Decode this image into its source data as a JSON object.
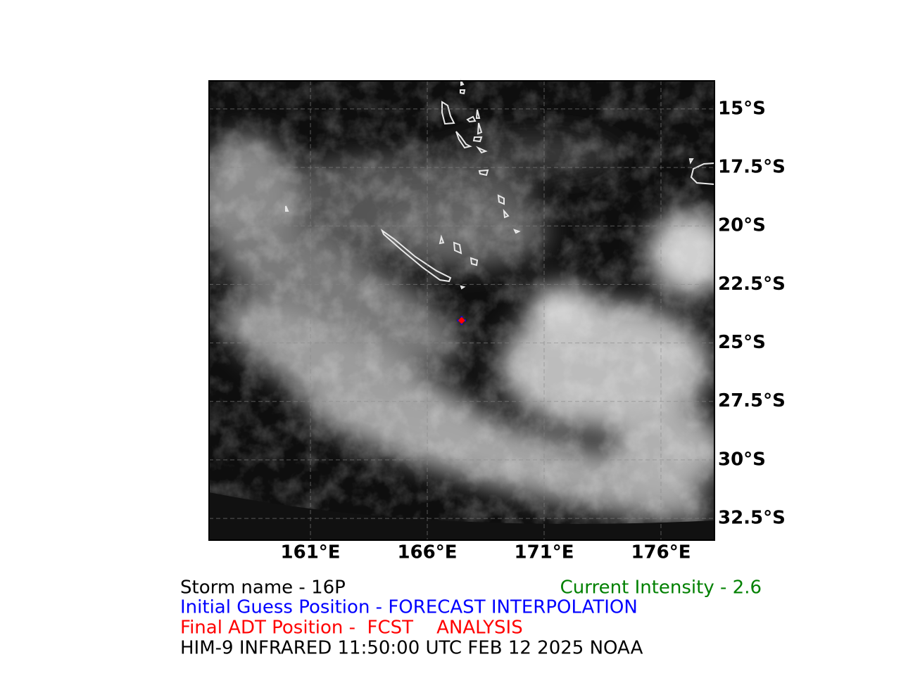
{
  "map": {
    "xlim": [
      156.66,
      178.29
    ],
    "ylim": [
      -33.43,
      -13.8
    ],
    "xticks": [
      {
        "value": 161,
        "label": "161°E"
      },
      {
        "value": 166,
        "label": "166°E"
      },
      {
        "value": 171,
        "label": "171°E"
      },
      {
        "value": 176,
        "label": "176°E"
      }
    ],
    "yticks": [
      {
        "value": -15,
        "label": "15°S"
      },
      {
        "value": -17.5,
        "label": "17.5°S"
      },
      {
        "value": -20,
        "label": "20°S"
      },
      {
        "value": -22.5,
        "label": "22.5°S"
      },
      {
        "value": -25,
        "label": "25°S"
      },
      {
        "value": -27.5,
        "label": "27.5°S"
      },
      {
        "value": -30,
        "label": "30°S"
      },
      {
        "value": -32.5,
        "label": "32.5°S"
      }
    ],
    "grid": true,
    "initial_guess_position": {
      "lon": 167.47,
      "lat": -24.04,
      "color": "#0000ff"
    },
    "final_adt_position": {
      "lon": 167.47,
      "lat": -24.04,
      "color": "#ff0000"
    }
  },
  "info": {
    "storm_name": "Storm name - 16P",
    "current_intensity": "Current Intensity -  2.6",
    "initial_guess": "Initial Guess Position - FORECAST INTERPOLATION",
    "final_adt": "Final ADT Position -  FCST    ANALYSIS",
    "source": "HIM-9 INFRARED 11:50:00 UTC FEB 12 2025 NOAA"
  }
}
